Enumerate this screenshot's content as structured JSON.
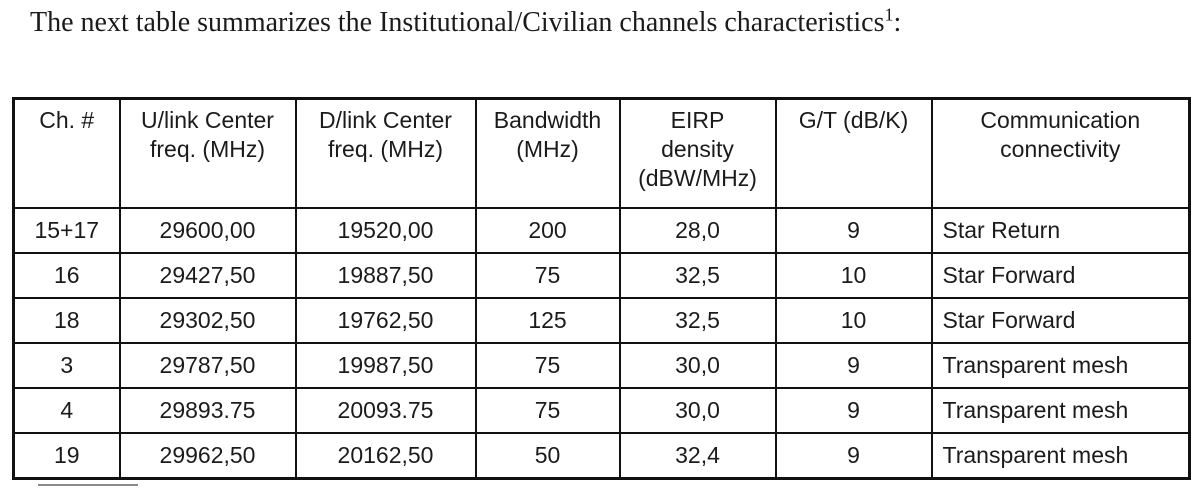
{
  "page": {
    "title_prefix": "The next table summarizes the Institutional/Civilian channels characteristics",
    "title_footnote_marker": "1",
    "title_suffix": ":"
  },
  "table": {
    "columns": [
      {
        "label": "Ch. #"
      },
      {
        "label": "U/link Center\nfreq. (MHz)"
      },
      {
        "label": "D/link Center\nfreq. (MHz)"
      },
      {
        "label": "Bandwidth\n(MHz)"
      },
      {
        "label": "EIRP\ndensity\n(dBW/MHz)"
      },
      {
        "label": "G/T (dB/K)"
      },
      {
        "label": "Communication\nconnectivity"
      }
    ],
    "rows": [
      [
        "15+17",
        "29600,00",
        "19520,00",
        "200",
        "28,0",
        "9",
        "Star Return"
      ],
      [
        "16",
        "29427,50",
        "19887,50",
        "75",
        "32,5",
        "10",
        "Star Forward"
      ],
      [
        "18",
        "29302,50",
        "19762,50",
        "125",
        "32,5",
        "10",
        "Star Forward"
      ],
      [
        "3",
        "29787,50",
        "19987,50",
        "75",
        "30,0",
        "9",
        "Transparent mesh"
      ],
      [
        "4",
        "29893.75",
        "20093.75",
        "75",
        "30,0",
        "9",
        "Transparent mesh"
      ],
      [
        "19",
        "29962,50",
        "20162,50",
        "50",
        "32,4",
        "9",
        "Transparent mesh"
      ]
    ]
  },
  "colors": {
    "text": "#1b1b1b",
    "border": "#111111",
    "background": "#ffffff"
  }
}
